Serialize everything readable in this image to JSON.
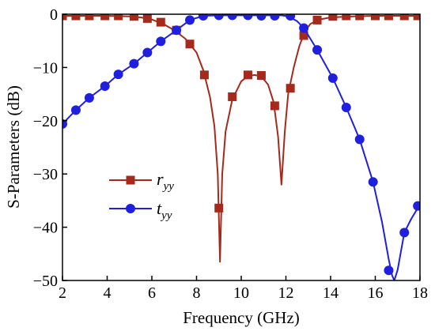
{
  "chart_data": {
    "type": "line",
    "xlabel": "Frequency (GHz)",
    "ylabel": "S-Parameters (dB)",
    "xlim": [
      2,
      18
    ],
    "ylim": [
      -50,
      0
    ],
    "xticks": [
      2,
      4,
      6,
      8,
      10,
      12,
      14,
      16,
      18
    ],
    "yticks": [
      0,
      -10,
      -20,
      -30,
      -40,
      -50
    ],
    "grid": false,
    "legend_position": "lower-left",
    "series": [
      {
        "name": "r",
        "name_subscript": "yy",
        "color": "#a52a1c",
        "marker": "square",
        "line": [
          [
            2,
            -0.3
          ],
          [
            3,
            -0.3
          ],
          [
            4,
            -0.3
          ],
          [
            5,
            -0.4
          ],
          [
            5.5,
            -0.6
          ],
          [
            6,
            -1.0
          ],
          [
            6.5,
            -1.8
          ],
          [
            7,
            -3.0
          ],
          [
            7.5,
            -4.6
          ],
          [
            8,
            -7.2
          ],
          [
            8.3,
            -10.5
          ],
          [
            8.6,
            -15.5
          ],
          [
            8.8,
            -21
          ],
          [
            8.95,
            -30
          ],
          [
            9.05,
            -46.5
          ],
          [
            9.15,
            -30
          ],
          [
            9.3,
            -22
          ],
          [
            9.6,
            -16
          ],
          [
            10,
            -12.6
          ],
          [
            10.3,
            -11.6
          ],
          [
            10.6,
            -11.4
          ],
          [
            10.9,
            -11.7
          ],
          [
            11.2,
            -13.2
          ],
          [
            11.45,
            -16.5
          ],
          [
            11.65,
            -23
          ],
          [
            11.8,
            -32
          ],
          [
            11.95,
            -22
          ],
          [
            12.1,
            -15
          ],
          [
            12.35,
            -10
          ],
          [
            12.6,
            -6
          ],
          [
            12.85,
            -3.2
          ],
          [
            13.1,
            -1.8
          ],
          [
            13.5,
            -1.0
          ],
          [
            14,
            -0.6
          ],
          [
            15,
            -0.4
          ],
          [
            16,
            -0.3
          ],
          [
            18,
            -0.3
          ]
        ],
        "markers": [
          [
            2,
            -0.3
          ],
          [
            2.6,
            -0.3
          ],
          [
            3.2,
            -0.3
          ],
          [
            3.9,
            -0.3
          ],
          [
            4.5,
            -0.3
          ],
          [
            5.2,
            -0.4
          ],
          [
            5.8,
            -0.8
          ],
          [
            6.4,
            -1.5
          ],
          [
            7.1,
            -3.0
          ],
          [
            7.7,
            -5.6
          ],
          [
            8.35,
            -11.4
          ],
          [
            9.0,
            -36.4
          ],
          [
            9.6,
            -15.5
          ],
          [
            10.3,
            -11.4
          ],
          [
            10.9,
            -11.5
          ],
          [
            11.5,
            -17.2
          ],
          [
            12.2,
            -13.9
          ],
          [
            12.8,
            -4.0
          ],
          [
            13.4,
            -1.1
          ],
          [
            14.1,
            -0.4
          ],
          [
            14.7,
            -0.3
          ],
          [
            15.3,
            -0.3
          ],
          [
            16.0,
            -0.3
          ],
          [
            16.6,
            -0.3
          ],
          [
            17.3,
            -0.3
          ],
          [
            17.9,
            -0.3
          ]
        ]
      },
      {
        "name": "t",
        "name_subscript": "yy",
        "color": "#1f1fe0",
        "marker": "circle",
        "line": [
          [
            2,
            -20.6
          ],
          [
            2.6,
            -18
          ],
          [
            3.2,
            -15.7
          ],
          [
            3.9,
            -13.5
          ],
          [
            4.5,
            -11.3
          ],
          [
            5.2,
            -9.3
          ],
          [
            5.8,
            -7.2
          ],
          [
            6.4,
            -5.1
          ],
          [
            7.1,
            -3.0
          ],
          [
            7.7,
            -1.1
          ],
          [
            8.3,
            -0.3
          ],
          [
            9,
            -0.2
          ],
          [
            10,
            -0.2
          ],
          [
            11,
            -0.2
          ],
          [
            11.8,
            -0.2
          ],
          [
            12.1,
            -0.4
          ],
          [
            12.5,
            -1.3
          ],
          [
            12.8,
            -2.6
          ],
          [
            13.4,
            -6.7
          ],
          [
            14.1,
            -12.0
          ],
          [
            14.7,
            -17.5
          ],
          [
            15.3,
            -23.5
          ],
          [
            15.9,
            -31.5
          ],
          [
            16.3,
            -39
          ],
          [
            16.6,
            -46
          ],
          [
            16.75,
            -49
          ],
          [
            16.85,
            -50
          ],
          [
            17.0,
            -48
          ],
          [
            17.3,
            -41
          ],
          [
            17.6,
            -38.5
          ],
          [
            18,
            -35.7
          ]
        ],
        "markers": [
          [
            2,
            -20.6
          ],
          [
            2.6,
            -18.0
          ],
          [
            3.2,
            -15.7
          ],
          [
            3.9,
            -13.5
          ],
          [
            4.5,
            -11.3
          ],
          [
            5.2,
            -9.3
          ],
          [
            5.8,
            -7.2
          ],
          [
            6.4,
            -5.1
          ],
          [
            7.1,
            -3.0
          ],
          [
            7.7,
            -1.1
          ],
          [
            8.3,
            -0.3
          ],
          [
            9.0,
            -0.2
          ],
          [
            9.6,
            -0.2
          ],
          [
            10.3,
            -0.2
          ],
          [
            10.9,
            -0.3
          ],
          [
            11.5,
            -0.3
          ],
          [
            12.2,
            -0.3
          ],
          [
            12.8,
            -2.6
          ],
          [
            13.4,
            -6.7
          ],
          [
            14.1,
            -12.0
          ],
          [
            14.7,
            -17.5
          ],
          [
            15.3,
            -23.5
          ],
          [
            15.9,
            -31.5
          ],
          [
            16.6,
            -48.1
          ],
          [
            17.3,
            -41.0
          ],
          [
            17.9,
            -36.0
          ]
        ]
      }
    ]
  }
}
